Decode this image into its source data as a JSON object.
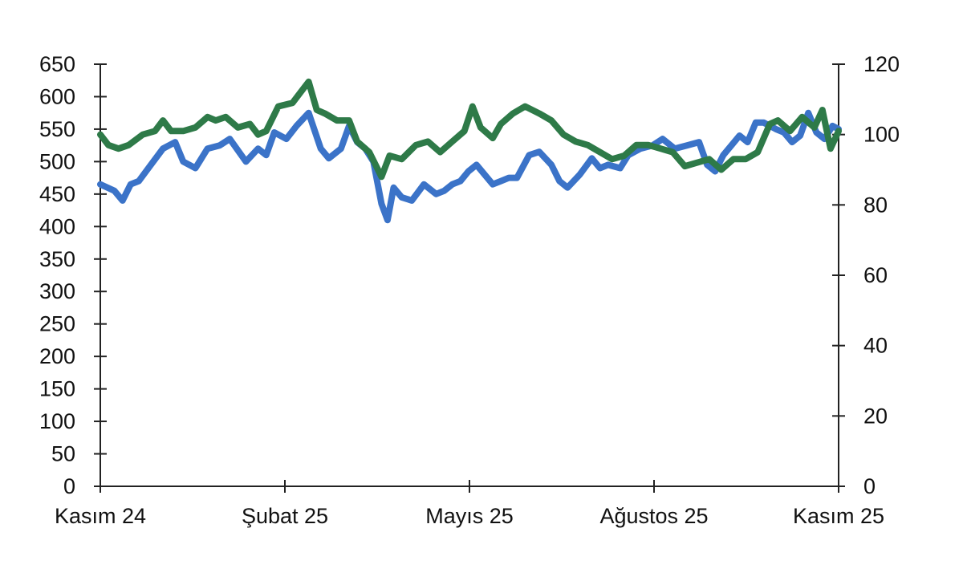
{
  "chart_data": {
    "type": "line",
    "title": "",
    "xlabel": "",
    "ylabel": "",
    "x_tick_labels": [
      "Kasım 24",
      "Şubat 25",
      "Mayıs 25",
      "Ağustos 25",
      "Kasım 25"
    ],
    "x_range": [
      "2024-11",
      "2025-11"
    ],
    "y_left": {
      "ylim": [
        0,
        650
      ],
      "ticks": [
        0,
        50,
        100,
        150,
        200,
        250,
        300,
        350,
        400,
        450,
        500,
        550,
        600,
        650
      ]
    },
    "y_right": {
      "ylim": [
        0,
        120
      ],
      "ticks": [
        0,
        20,
        40,
        60,
        80,
        100,
        120
      ]
    },
    "grid": false,
    "legend": "none",
    "series": [
      {
        "axis": "left",
        "color": "#3b73c8",
        "x": [
          "2024-11-01",
          "2024-11-08",
          "2024-11-12",
          "2024-11-16",
          "2024-11-20",
          "2024-11-26",
          "2024-12-02",
          "2024-12-08",
          "2024-12-12",
          "2024-12-18",
          "2024-12-24",
          "2024-12-30",
          "2025-01-04",
          "2025-01-12",
          "2025-01-18",
          "2025-01-22",
          "2025-01-26",
          "2025-02-01",
          "2025-02-06",
          "2025-02-12",
          "2025-02-18",
          "2025-02-22",
          "2025-02-28",
          "2025-03-04",
          "2025-03-08",
          "2025-03-12",
          "2025-03-16",
          "2025-03-20",
          "2025-03-23",
          "2025-03-26",
          "2025-03-30",
          "2025-04-04",
          "2025-04-10",
          "2025-04-16",
          "2025-04-20",
          "2025-04-24",
          "2025-04-28",
          "2025-05-02",
          "2025-05-06",
          "2025-05-10",
          "2025-05-14",
          "2025-05-18",
          "2025-05-22",
          "2025-05-26",
          "2025-06-01",
          "2025-06-06",
          "2025-06-12",
          "2025-06-16",
          "2025-06-20",
          "2025-06-26",
          "2025-07-02",
          "2025-07-06",
          "2025-07-10",
          "2025-07-16",
          "2025-07-20",
          "2025-07-26",
          "2025-08-01",
          "2025-08-06",
          "2025-08-12",
          "2025-08-18",
          "2025-08-24",
          "2025-08-28",
          "2025-09-01",
          "2025-09-05",
          "2025-09-09",
          "2025-09-13",
          "2025-09-17",
          "2025-09-21",
          "2025-09-25",
          "2025-10-01",
          "2025-10-05",
          "2025-10-09",
          "2025-10-13",
          "2025-10-17",
          "2025-10-21",
          "2025-10-25",
          "2025-10-29",
          "2025-11-01"
        ],
        "y": [
          465,
          455,
          440,
          465,
          470,
          495,
          520,
          530,
          500,
          490,
          520,
          525,
          535,
          500,
          520,
          510,
          545,
          535,
          555,
          575,
          520,
          505,
          520,
          555,
          530,
          520,
          500,
          435,
          410,
          460,
          445,
          440,
          465,
          450,
          455,
          465,
          470,
          485,
          495,
          480,
          465,
          470,
          475,
          475,
          510,
          515,
          495,
          470,
          460,
          480,
          505,
          490,
          495,
          490,
          510,
          520,
          525,
          535,
          520,
          525,
          530,
          495,
          485,
          510,
          525,
          540,
          530,
          560,
          560,
          550,
          545,
          530,
          540,
          575,
          545,
          535,
          555,
          550
        ]
      },
      {
        "axis": "right",
        "color": "#2e7a48",
        "x": [
          "2024-11-01",
          "2024-11-05",
          "2024-11-10",
          "2024-11-15",
          "2024-11-22",
          "2024-11-28",
          "2024-12-02",
          "2024-12-06",
          "2024-12-12",
          "2024-12-18",
          "2024-12-24",
          "2024-12-28",
          "2025-01-02",
          "2025-01-08",
          "2025-01-14",
          "2025-01-18",
          "2025-01-22",
          "2025-01-28",
          "2025-02-04",
          "2025-02-08",
          "2025-02-12",
          "2025-02-16",
          "2025-02-20",
          "2025-02-26",
          "2025-03-04",
          "2025-03-08",
          "2025-03-14",
          "2025-03-20",
          "2025-03-24",
          "2025-03-30",
          "2025-04-06",
          "2025-04-12",
          "2025-04-18",
          "2025-04-24",
          "2025-04-30",
          "2025-05-04",
          "2025-05-08",
          "2025-05-14",
          "2025-05-18",
          "2025-05-24",
          "2025-05-30",
          "2025-06-06",
          "2025-06-12",
          "2025-06-18",
          "2025-06-24",
          "2025-06-30",
          "2025-07-06",
          "2025-07-12",
          "2025-07-18",
          "2025-07-24",
          "2025-07-30",
          "2025-08-05",
          "2025-08-11",
          "2025-08-17",
          "2025-08-23",
          "2025-08-29",
          "2025-09-04",
          "2025-09-10",
          "2025-09-16",
          "2025-09-22",
          "2025-09-28",
          "2025-10-02",
          "2025-10-08",
          "2025-10-14",
          "2025-10-20",
          "2025-10-24",
          "2025-10-28",
          "2025-11-01"
        ],
        "y": [
          100,
          97,
          96,
          97,
          100,
          101,
          104,
          101,
          101,
          102,
          105,
          104,
          105,
          102,
          103,
          100,
          101,
          108,
          109,
          112,
          115,
          107,
          106,
          104,
          104,
          98,
          95,
          88,
          94,
          93,
          97,
          98,
          95,
          98,
          101,
          108,
          102,
          99,
          103,
          106,
          108,
          106,
          104,
          100,
          98,
          97,
          95,
          93,
          94,
          97,
          97,
          96,
          95,
          91,
          92,
          93,
          90,
          93,
          93,
          95,
          103,
          104,
          101,
          105,
          102,
          107,
          96,
          101
        ]
      }
    ]
  }
}
